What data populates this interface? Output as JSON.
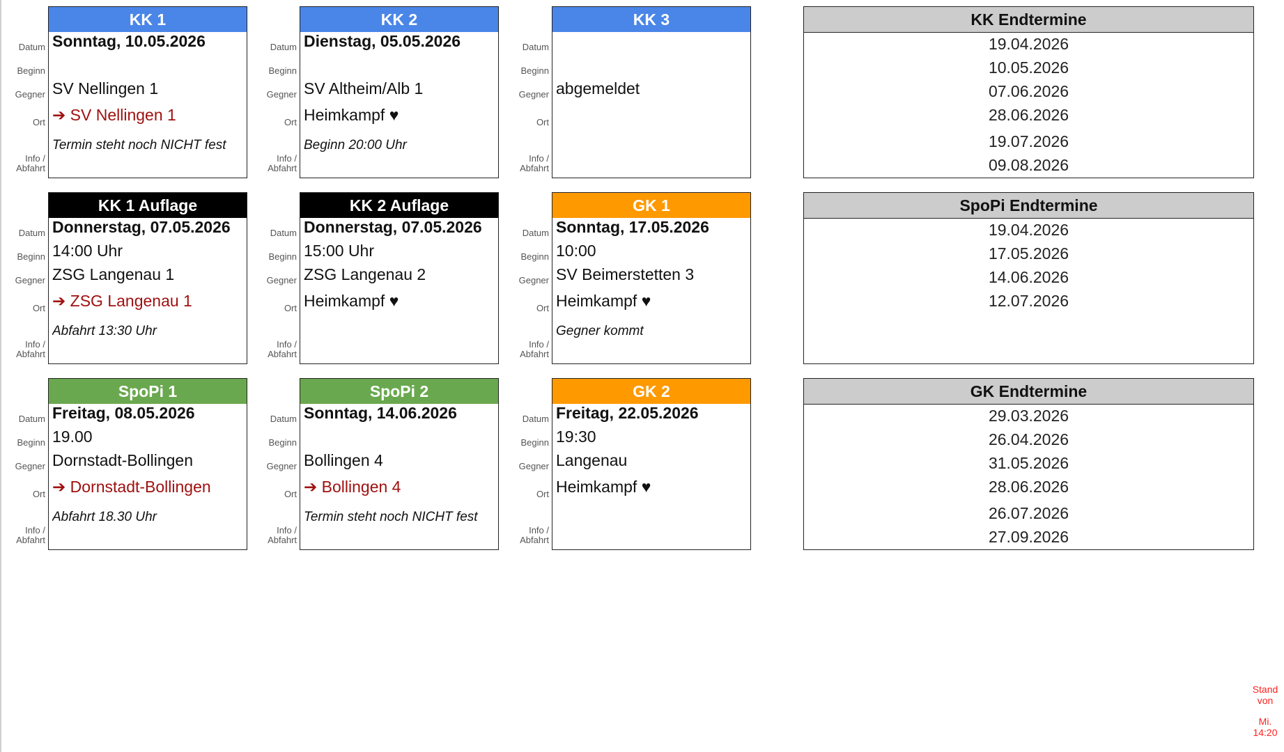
{
  "labels": {
    "datum": "Datum",
    "beginn": "Beginn",
    "gegner": "Gegner",
    "ort": "Ort",
    "info1": "Info /",
    "info2": "Abfahrt"
  },
  "colors": {
    "blue": "#4a86e8",
    "black": "#000000",
    "orange": "#ff9900",
    "green": "#6aa84f",
    "gray": "#cccccc",
    "red": "#a01010"
  },
  "cards": [
    {
      "title": "KK 1",
      "color": "blue",
      "datum": "Sonntag, 10.05.2026",
      "beginn": "",
      "gegner": "SV Nellingen 1",
      "ort": "➔ SV Nellingen 1",
      "ort_away": true,
      "info": "Termin steht noch NICHT fest"
    },
    {
      "title": "KK 2",
      "color": "blue",
      "datum": "Dienstag, 05.05.2026",
      "beginn": "",
      "gegner": "SV Altheim/Alb 1",
      "ort": "Heimkampf ♥",
      "ort_away": false,
      "info": "Beginn 20:00 Uhr"
    },
    {
      "title": "KK 3",
      "color": "blue",
      "datum": "",
      "beginn": "",
      "gegner": "abgemeldet",
      "ort": "",
      "ort_away": false,
      "info": ""
    },
    {
      "title": "KK 1 Auflage",
      "color": "black",
      "datum": "Donnerstag, 07.05.2026",
      "beginn": "14:00 Uhr",
      "gegner": "ZSG Langenau 1",
      "ort": "➔ ZSG Langenau 1",
      "ort_away": true,
      "info": "Abfahrt 13:30 Uhr"
    },
    {
      "title": "KK 2 Auflage",
      "color": "black",
      "datum": "Donnerstag, 07.05.2026",
      "beginn": "15:00 Uhr",
      "gegner": "ZSG Langenau 2",
      "ort": "Heimkampf ♥",
      "ort_away": false,
      "info": ""
    },
    {
      "title": "GK 1",
      "color": "orange",
      "datum": "Sonntag, 17.05.2026",
      "beginn": "10:00",
      "gegner": "SV Beimerstetten 3",
      "ort": "Heimkampf ♥",
      "ort_away": false,
      "info": "Gegner kommt"
    },
    {
      "title": "SpoPi 1",
      "color": "green",
      "datum": "Freitag, 08.05.2026",
      "beginn": "19.00",
      "gegner": "Dornstadt-Bollingen",
      "ort": "➔ Dornstadt-Bollingen",
      "ort_away": true,
      "info": "Abfahrt 18.30 Uhr"
    },
    {
      "title": "SpoPi 2",
      "color": "green",
      "datum": "Sonntag, 14.06.2026",
      "beginn": "",
      "gegner": "Bollingen 4",
      "ort": "➔ Bollingen 4",
      "ort_away": true,
      "info": "Termin steht noch NICHT fest"
    },
    {
      "title": "GK 2",
      "color": "orange",
      "datum": "Freitag, 22.05.2026",
      "beginn": "19:30",
      "gegner": "Langenau",
      "ort": "Heimkampf ♥",
      "ort_away": false,
      "info": ""
    }
  ],
  "endtermine": [
    {
      "title": "KK Endtermine",
      "dates": [
        "19.04.2026",
        "10.05.2026",
        "07.06.2026",
        "28.06.2026",
        "19.07.2026",
        "09.08.2026"
      ]
    },
    {
      "title": "SpoPi Endtermine",
      "dates": [
        "19.04.2026",
        "17.05.2026",
        "14.06.2026",
        "12.07.2026"
      ]
    },
    {
      "title": "GK Endtermine",
      "dates": [
        "29.03.2026",
        "26.04.2026",
        "31.05.2026",
        "28.06.2026",
        "26.07.2026",
        "27.09.2026"
      ]
    }
  ],
  "stand": {
    "line1": "Stand",
    "line2": "von",
    "line3": "Mi.",
    "line4": "14:20"
  }
}
